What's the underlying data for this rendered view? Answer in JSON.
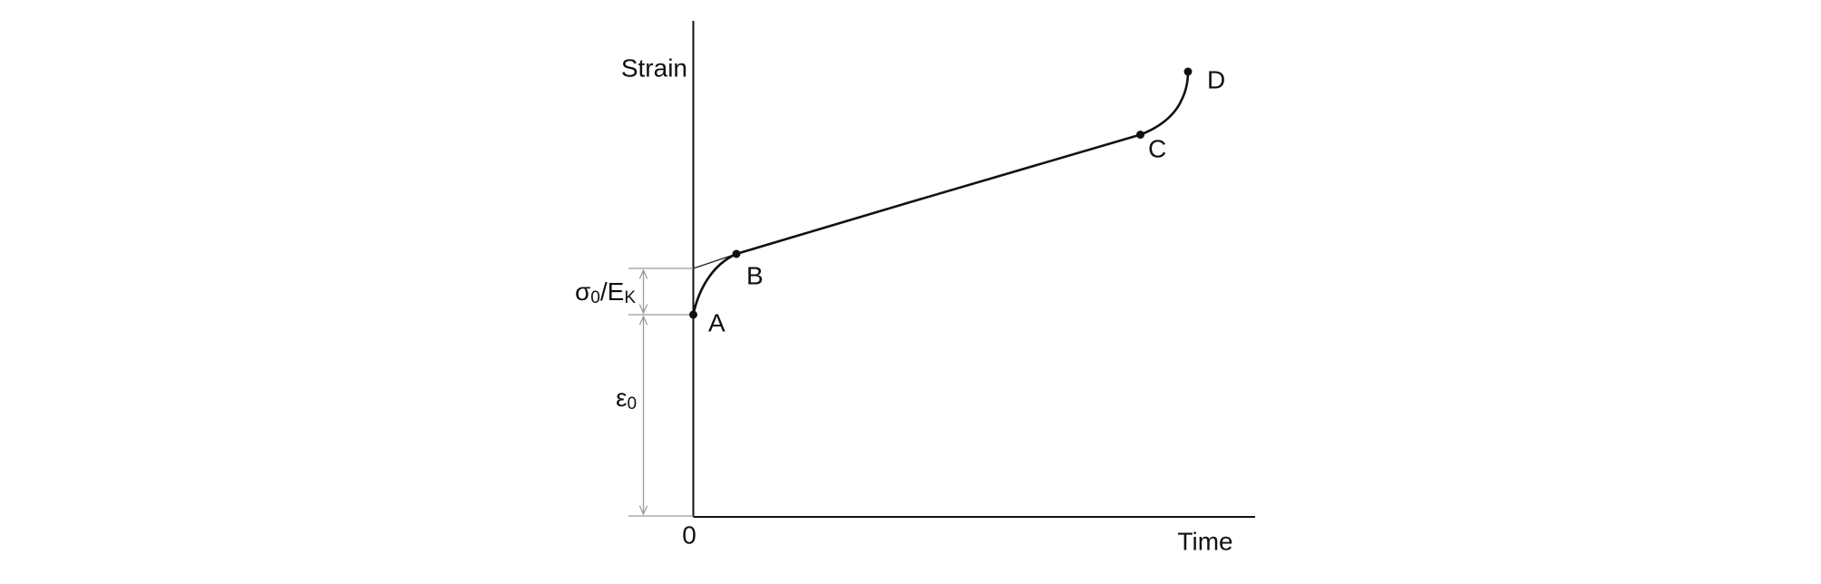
{
  "axes": {
    "y_label": "Strain",
    "x_label": "Time",
    "origin": "0"
  },
  "points": {
    "a": "A",
    "b": "B",
    "c": "C",
    "d": "D"
  },
  "dimensions": {
    "upper": {
      "base": "σ",
      "sub1": "0",
      "mid": "/E",
      "sub2": "K"
    },
    "lower": {
      "base": "ε",
      "sub": "0"
    }
  }
}
